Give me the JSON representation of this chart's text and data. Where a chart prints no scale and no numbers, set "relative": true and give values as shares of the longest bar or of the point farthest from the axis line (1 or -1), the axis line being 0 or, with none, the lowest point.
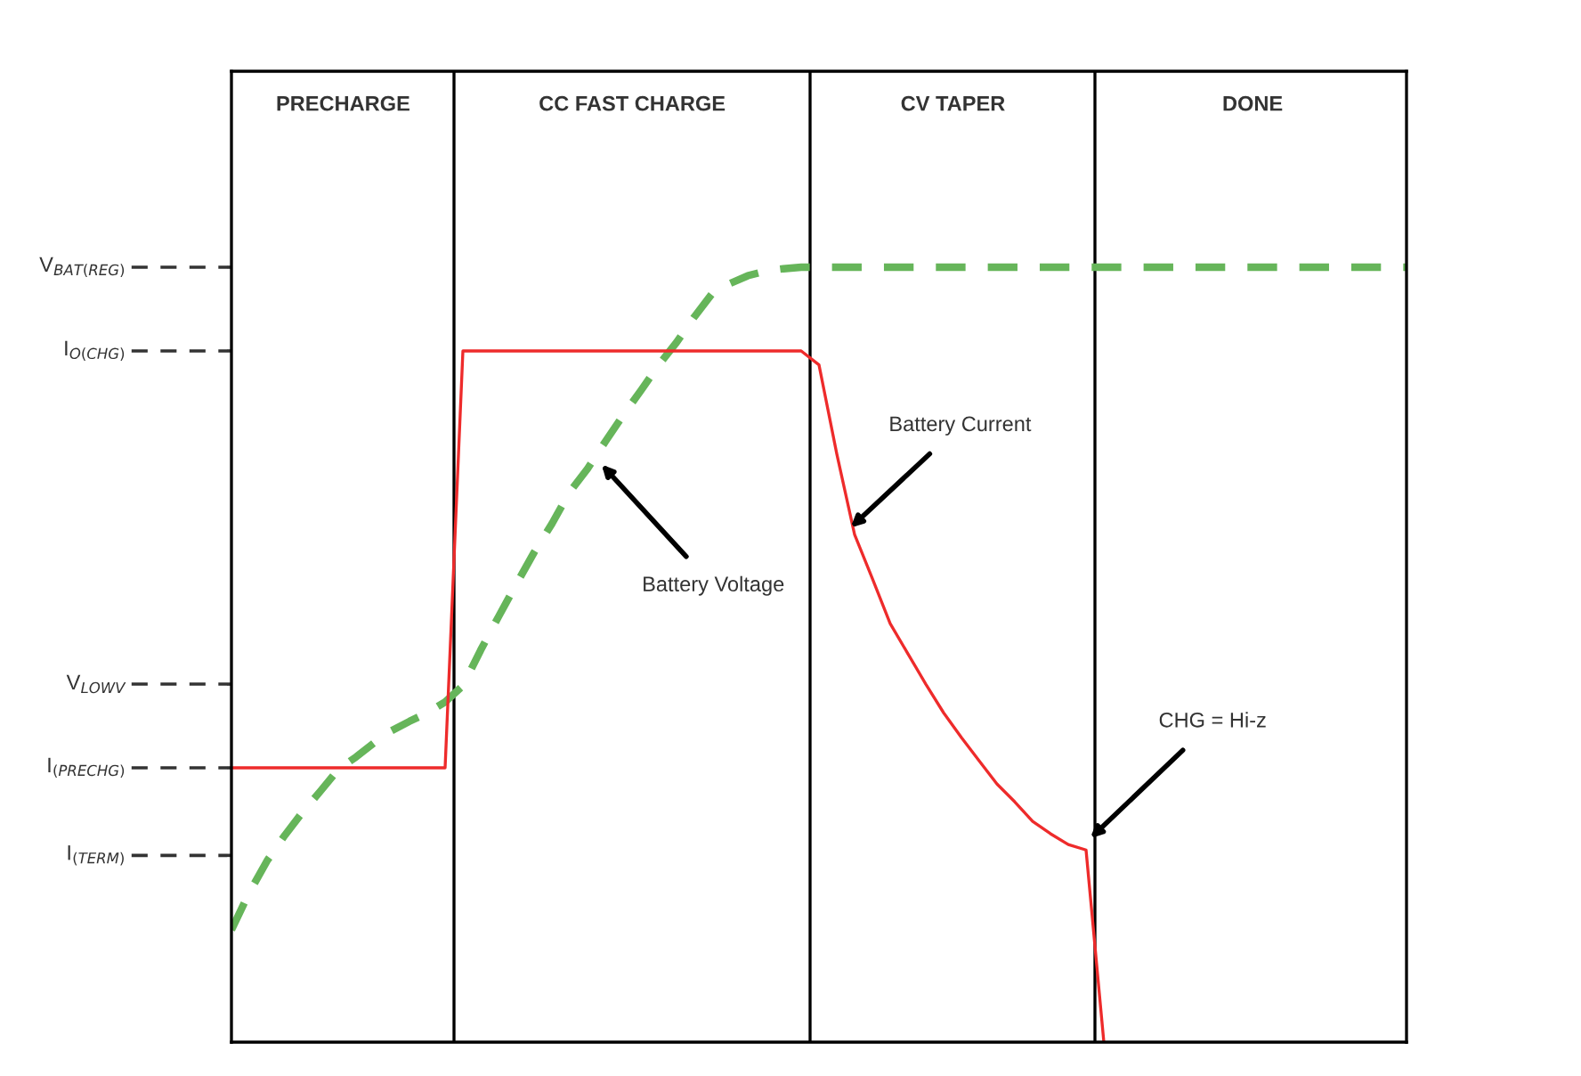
{
  "chart_data": {
    "type": "line",
    "relative": true,
    "categories": [
      null,
      null,
      null,
      null,
      null,
      null,
      null,
      null,
      null,
      null,
      null,
      null,
      null,
      null,
      null,
      null,
      null,
      null,
      null,
      null,
      null,
      null,
      null,
      null,
      null,
      null,
      null,
      null,
      null,
      null,
      null,
      null,
      null,
      null,
      null,
      null,
      null,
      null,
      null,
      null,
      null,
      null,
      null,
      null,
      null,
      null,
      null,
      null,
      null,
      null,
      null,
      null,
      null,
      null,
      null,
      null,
      null,
      null,
      null,
      null,
      null,
      null,
      null,
      null,
      null,
      null,
      null
    ],
    "ref_lines": [
      {
        "axis": "y",
        "value": 1.0,
        "label": "V$_{BAT(REG)}$",
        "line_style": "dashed"
      },
      {
        "axis": "y",
        "value": 0.892,
        "label": "I$_{O(CHG)}$",
        "line_style": "dashed"
      },
      {
        "axis": "y",
        "value": 0.462,
        "label": "V$_{LOWV}$",
        "line_style": "dashed"
      },
      {
        "axis": "y",
        "value": 0.354,
        "label": "I$_{(PRECHG)}$",
        "line_style": "dashed"
      },
      {
        "axis": "y",
        "value": 0.241,
        "label": "I$_{(TERM)}$",
        "line_style": "dashed"
      }
    ],
    "series": [
      {
        "color": "#66b55a",
        "line_style": "dashed",
        "values": [
          0.145,
          0.193,
          0.234,
          0.267,
          0.297,
          0.324,
          0.352,
          0.368,
          0.386,
          0.402,
          0.414,
          0.425,
          0.439,
          0.46,
          0.506,
          0.549,
          0.591,
          0.632,
          0.669,
          0.71,
          0.74,
          0.775,
          0.809,
          0.841,
          0.874,
          0.903,
          0.936,
          0.966,
          0.979,
          0.989,
          0.995,
          0.998,
          1,
          1,
          1,
          1,
          1,
          1,
          1,
          1,
          1,
          1,
          1,
          1,
          1,
          1,
          1,
          1,
          1,
          1,
          1,
          1,
          1,
          1,
          1,
          1,
          1,
          1,
          1,
          1,
          1,
          1,
          1,
          1,
          1,
          1,
          1
        ]
      },
      {
        "color": "#ee2b2b",
        "line_style": "solid",
        "values": [
          0.354,
          0.354,
          0.354,
          0.354,
          0.354,
          0.354,
          0.354,
          0.354,
          0.354,
          0.354,
          0.354,
          0.354,
          0.354,
          0.892,
          0.892,
          0.892,
          0.892,
          0.892,
          0.892,
          0.892,
          0.892,
          0.892,
          0.892,
          0.892,
          0.892,
          0.892,
          0.892,
          0.892,
          0.892,
          0.892,
          0.892,
          0.892,
          0.892,
          0.874,
          0.759,
          0.655,
          0.598,
          0.54,
          0.501,
          0.462,
          0.425,
          0.393,
          0.363,
          0.333,
          0.31,
          0.285,
          0.269,
          0.255,
          0.248,
          0,
          null,
          null,
          null,
          null,
          null,
          null,
          null,
          null,
          null,
          null,
          null,
          null,
          null,
          null,
          null,
          null,
          null
        ]
      }
    ],
    "annotations": [
      "PRECHARGE",
      "CC FAST CHARGE",
      "CV TAPER",
      "DONE",
      "Battery Current",
      "Battery Voltage",
      "CHG = Hi-z"
    ]
  }
}
